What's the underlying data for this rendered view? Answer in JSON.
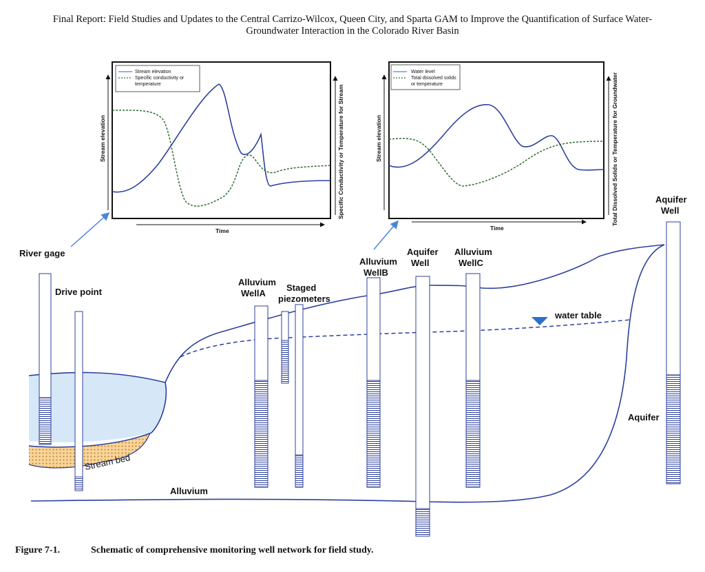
{
  "header": {
    "line1": "Final Report: Field Studies and Updates to the Central Carrizo-Wilcox, Queen City, and Sparta GAM to Improve the Quantification of Surface Water-",
    "line2": "Groundwater Interaction in the Colorado River Basin"
  },
  "caption": {
    "figure_number": "Figure 7-1.",
    "text": "Schematic of comprehensive monitoring well network for field study."
  },
  "chart_left": {
    "legend": [
      "Stream elevation",
      "Specific conductivity or",
      "temperature"
    ],
    "y_left": "Stream elevation",
    "y_right": "Specific Conductivity or Temperature for Stream",
    "x_label": "Time"
  },
  "chart_right": {
    "legend": [
      "Water level",
      "Total dissolved solids",
      "or temperature"
    ],
    "y_left": "Stream elevation",
    "y_right": "Total Dissolved Solids or Temperature for Groundwater",
    "x_label": "Time"
  },
  "labels": {
    "river_gage": "River gage",
    "drive_point": "Drive point",
    "alluvium_well_a": [
      "Alluvium",
      "WellA"
    ],
    "staged_piezometers": [
      "Staged",
      "piezometers"
    ],
    "alluvium_well_b": [
      "Alluvium",
      "WellB"
    ],
    "aquifer_well_mid": [
      "Aquifer",
      "Well"
    ],
    "alluvium_well_c": [
      "Alluvium",
      "WellC"
    ],
    "aquifer_well_right": [
      "Aquifer",
      "Well"
    ],
    "water_table": "water table",
    "aquifer": "Aquifer",
    "stream_bed": "Stream bed",
    "alluvium": "Alluvium"
  },
  "colors": {
    "stream_line": "#2b3f9e",
    "water_fill": "#d6e8f8",
    "dashed_line": "#2e6b2e",
    "arrow": "#4a86d8",
    "stream_bed": "#f0b45a"
  }
}
